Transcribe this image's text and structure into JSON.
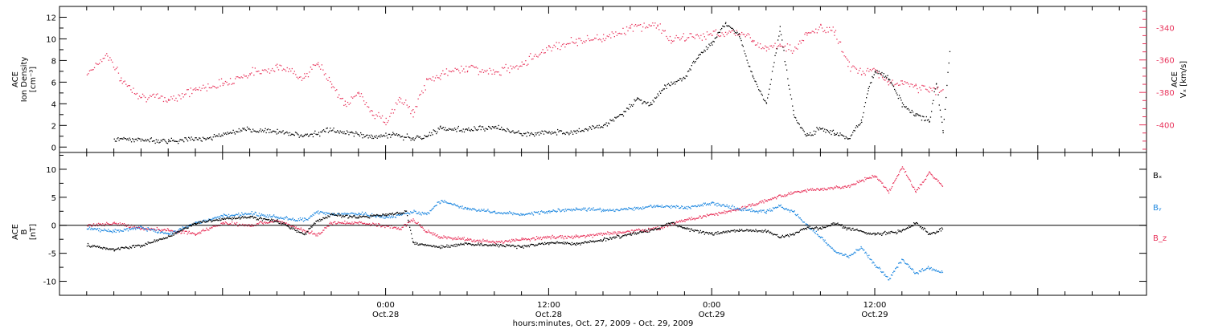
{
  "chart_data": [
    {
      "type": "scatter",
      "panel": "top",
      "ylabel_left": [
        "ACE",
        "Ion Density",
        "[cm⁻³]"
      ],
      "ylabel_right": [
        "ACE",
        "Vₓ [km/s]"
      ],
      "ylim_left": [
        -0.5,
        13
      ],
      "yticks_left": [
        0,
        2,
        4,
        6,
        8,
        10,
        12
      ],
      "ylim_right": [
        -417,
        -327
      ],
      "yticks_right": [
        -400,
        -380,
        -360,
        -340
      ],
      "series": [
        {
          "axis": "left",
          "color": "#000000",
          "points": [
            [
              -20,
              0.8
            ],
            [
              -16,
              0.6
            ],
            [
              -13,
              0.9
            ],
            [
              -10.5,
              1.6
            ],
            [
              -8,
              1.5
            ],
            [
              -6,
              1.1
            ],
            [
              -4,
              1.6
            ],
            [
              -2.5,
              1.3
            ],
            [
              -1,
              1.0
            ],
            [
              0.5,
              1.2
            ],
            [
              2,
              0.8
            ],
            [
              3,
              1.0
            ],
            [
              4,
              1.8
            ],
            [
              6,
              1.6
            ],
            [
              8,
              1.9
            ],
            [
              10,
              1.2
            ],
            [
              12,
              1.4
            ],
            [
              14,
              1.5
            ],
            [
              16,
              2.0
            ],
            [
              17.5,
              3.2
            ],
            [
              18.5,
              4.5
            ],
            [
              19.5,
              4.0
            ],
            [
              20.5,
              5.6
            ],
            [
              22,
              6.5
            ],
            [
              23,
              8.5
            ],
            [
              24,
              9.7
            ],
            [
              25,
              11.5
            ],
            [
              26,
              10.4
            ],
            [
              27,
              6.5
            ],
            [
              28,
              4.0
            ],
            [
              29,
              11.0
            ],
            [
              30,
              3.0
            ],
            [
              31,
              1.0
            ],
            [
              32,
              1.8
            ],
            [
              33,
              1.3
            ],
            [
              34,
              0.8
            ],
            [
              35,
              2.5
            ],
            [
              35.5,
              5.5
            ],
            [
              36,
              7.0
            ],
            [
              37,
              6.5
            ],
            [
              38,
              4.0
            ],
            [
              39,
              3.0
            ],
            [
              40,
              2.5
            ],
            [
              40.5,
              6.0
            ],
            [
              41,
              1.5
            ],
            [
              41.5,
              9.0
            ]
          ]
        },
        {
          "axis": "right",
          "color": "#e8325a",
          "points": [
            [
              -22,
              -368
            ],
            [
              -20.5,
              -356
            ],
            [
              -19.5,
              -372
            ],
            [
              -18,
              -382
            ],
            [
              -16,
              -384
            ],
            [
              -14,
              -378
            ],
            [
              -12,
              -374
            ],
            [
              -10,
              -368
            ],
            [
              -8,
              -364
            ],
            [
              -6,
              -370
            ],
            [
              -5,
              -362
            ],
            [
              -4,
              -374
            ],
            [
              -3,
              -388
            ],
            [
              -2,
              -380
            ],
            [
              -1,
              -392
            ],
            [
              0,
              -398
            ],
            [
              1,
              -384
            ],
            [
              2,
              -392
            ],
            [
              3,
              -373
            ],
            [
              4,
              -369
            ],
            [
              6,
              -364
            ],
            [
              8,
              -368
            ],
            [
              10,
              -362
            ],
            [
              12,
              -352
            ],
            [
              14,
              -348
            ],
            [
              16,
              -346
            ],
            [
              18,
              -340
            ],
            [
              20,
              -338
            ],
            [
              21,
              -348
            ],
            [
              22,
              -346
            ],
            [
              24,
              -344
            ],
            [
              26,
              -342
            ],
            [
              27,
              -348
            ],
            [
              28,
              -352
            ],
            [
              29,
              -350
            ],
            [
              30,
              -354
            ],
            [
              31,
              -344
            ],
            [
              32,
              -340
            ],
            [
              33,
              -342
            ],
            [
              34,
              -362
            ],
            [
              35,
              -368
            ],
            [
              36,
              -366
            ],
            [
              37,
              -374
            ],
            [
              38,
              -374
            ],
            [
              39,
              -376
            ],
            [
              40,
              -378
            ],
            [
              41,
              -379
            ]
          ]
        }
      ]
    },
    {
      "type": "scatter",
      "panel": "bottom",
      "ylabel": [
        "ACE",
        "B",
        "[nT]"
      ],
      "ylim": [
        -12.5,
        13
      ],
      "yticks": [
        -10,
        -5,
        0,
        5,
        10
      ],
      "zero_line": true,
      "legend": [
        "Bₓ",
        "Bᵧ",
        "B_z"
      ],
      "legend_placement": "right",
      "series": [
        {
          "name": "Bₓ",
          "color": "#000000",
          "points": [
            [
              -22,
              -3.5
            ],
            [
              -20,
              -4.2
            ],
            [
              -18,
              -3.5
            ],
            [
              -16,
              -2.0
            ],
            [
              -14,
              0.5
            ],
            [
              -12,
              1.2
            ],
            [
              -10,
              1.5
            ],
            [
              -8,
              0.8
            ],
            [
              -6,
              -1.5
            ],
            [
              -5,
              1.0
            ],
            [
              -4,
              2.0
            ],
            [
              -2,
              1.5
            ],
            [
              0,
              2.0
            ],
            [
              1.5,
              2.5
            ],
            [
              2,
              -3.0
            ],
            [
              3,
              -3.5
            ],
            [
              4,
              -3.8
            ],
            [
              6,
              -3.2
            ],
            [
              8,
              -3.5
            ],
            [
              10,
              -3.8
            ],
            [
              12,
              -3.0
            ],
            [
              14,
              -3.2
            ],
            [
              16,
              -2.5
            ],
            [
              18,
              -1.5
            ],
            [
              20,
              -0.5
            ],
            [
              21,
              0.6
            ],
            [
              22,
              -0.5
            ],
            [
              24,
              -1.5
            ],
            [
              26,
              -0.8
            ],
            [
              28,
              -1.0
            ],
            [
              29,
              -2.0
            ],
            [
              30,
              -1.5
            ],
            [
              31,
              -0.3
            ],
            [
              32,
              -0.5
            ],
            [
              33,
              0.5
            ],
            [
              34,
              -0.5
            ],
            [
              36,
              -1.5
            ],
            [
              38,
              -1.0
            ],
            [
              39,
              0.5
            ],
            [
              40,
              -1.5
            ],
            [
              41,
              -0.5
            ]
          ]
        },
        {
          "name": "Bᵧ",
          "color": "#1f88e0",
          "points": [
            [
              -22,
              -0.5
            ],
            [
              -20,
              -1.0
            ],
            [
              -18,
              -0.3
            ],
            [
              -16,
              -1.5
            ],
            [
              -14,
              0.5
            ],
            [
              -12,
              1.8
            ],
            [
              -10,
              2.2
            ],
            [
              -8,
              1.5
            ],
            [
              -6,
              1.0
            ],
            [
              -5,
              2.5
            ],
            [
              -4,
              2.0
            ],
            [
              -2,
              2.2
            ],
            [
              0,
              1.5
            ],
            [
              2,
              2.5
            ],
            [
              3,
              2.0
            ],
            [
              4,
              4.5
            ],
            [
              6,
              3.0
            ],
            [
              8,
              2.5
            ],
            [
              10,
              2.0
            ],
            [
              12,
              2.5
            ],
            [
              14,
              3.0
            ],
            [
              16,
              2.8
            ],
            [
              18,
              3.0
            ],
            [
              20,
              3.5
            ],
            [
              22,
              3.2
            ],
            [
              24,
              4.0
            ],
            [
              26,
              3.0
            ],
            [
              28,
              2.5
            ],
            [
              29,
              3.5
            ],
            [
              30,
              2.5
            ],
            [
              31,
              0.0
            ],
            [
              32,
              -2.0
            ],
            [
              33,
              -4.5
            ],
            [
              34,
              -5.5
            ],
            [
              35,
              -4.0
            ],
            [
              36,
              -7.0
            ],
            [
              37,
              -9.5
            ],
            [
              38,
              -6.0
            ],
            [
              39,
              -8.5
            ],
            [
              40,
              -7.5
            ],
            [
              41,
              -8.5
            ]
          ]
        },
        {
          "name": "B_z",
          "color": "#e8325a",
          "points": [
            [
              -22,
              0.0
            ],
            [
              -20,
              0.5
            ],
            [
              -18,
              -0.5
            ],
            [
              -16,
              -0.8
            ],
            [
              -14,
              -1.5
            ],
            [
              -12,
              0.5
            ],
            [
              -10,
              0.0
            ],
            [
              -8,
              1.0
            ],
            [
              -6,
              -1.0
            ],
            [
              -5,
              -1.5
            ],
            [
              -4,
              0.5
            ],
            [
              -2,
              0.5
            ],
            [
              0,
              0.0
            ],
            [
              1,
              -0.5
            ],
            [
              2,
              1.0
            ],
            [
              3,
              -1.0
            ],
            [
              4,
              -2.0
            ],
            [
              6,
              -2.5
            ],
            [
              8,
              -3.0
            ],
            [
              10,
              -2.5
            ],
            [
              12,
              -2.0
            ],
            [
              14,
              -2.0
            ],
            [
              16,
              -1.5
            ],
            [
              18,
              -1.0
            ],
            [
              20,
              -0.5
            ],
            [
              22,
              1.0
            ],
            [
              24,
              2.0
            ],
            [
              26,
              3.0
            ],
            [
              28,
              4.5
            ],
            [
              30,
              6.0
            ],
            [
              32,
              6.5
            ],
            [
              34,
              7.0
            ],
            [
              35,
              8.0
            ],
            [
              36,
              9.0
            ],
            [
              37,
              6.0
            ],
            [
              38,
              10.5
            ],
            [
              39,
              6.0
            ],
            [
              40,
              9.5
            ],
            [
              41,
              7.0
            ]
          ]
        }
      ]
    }
  ],
  "xaxis": {
    "xlim": [
      -24,
      56
    ],
    "major_ticks": [
      {
        "hours": 0,
        "time": "0:00",
        "date": "Oct.28"
      },
      {
        "hours": 12,
        "time": "12:00",
        "date": "Oct.28"
      },
      {
        "hours": 24,
        "time": "0:00",
        "date": "Oct.29"
      },
      {
        "hours": 36,
        "time": "12:00",
        "date": "Oct.29"
      }
    ],
    "xlabel": "hours:minutes, Oct. 27, 2009 - Oct. 29, 2009"
  }
}
